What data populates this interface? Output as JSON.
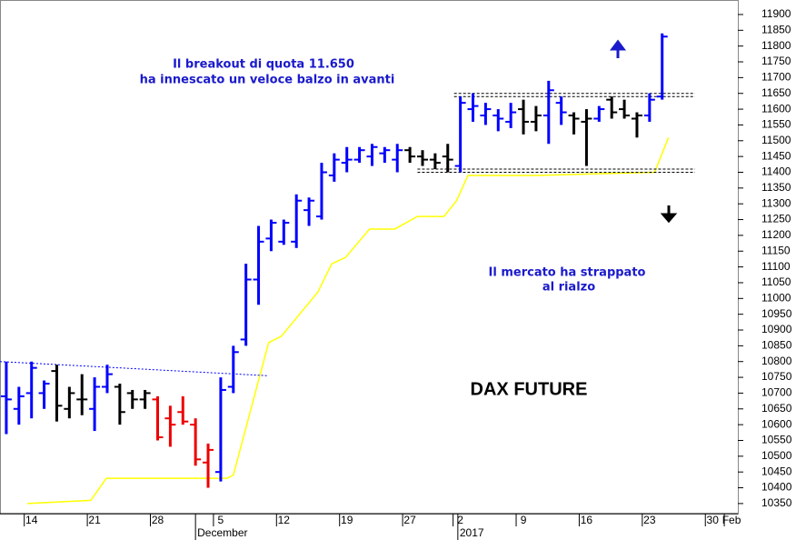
{
  "chart_data": {
    "type": "ohlc",
    "title": "DAX FUTURE",
    "annotations": [
      "Il breakout di quota 11.650",
      "ha innescato un veloce balzo in avanti",
      "Il mercato ha strappato",
      "al rialzo"
    ],
    "ylim": [
      10318,
      11946
    ],
    "yticks": [
      10350,
      10400,
      10450,
      10500,
      10550,
      10600,
      10650,
      10700,
      10750,
      10800,
      10850,
      10900,
      10950,
      11000,
      11050,
      11100,
      11150,
      11200,
      11250,
      11300,
      11350,
      11400,
      11450,
      11500,
      11550,
      11600,
      11650,
      11700,
      11750,
      11800,
      11850,
      11900
    ],
    "xlim": [
      -2.5,
      56
    ],
    "xticks": [
      {
        "value": 0,
        "label": "14"
      },
      {
        "value": 5,
        "label": "21"
      },
      {
        "value": 10,
        "label": "28"
      },
      {
        "value": 15,
        "label": "5"
      },
      {
        "value": 20,
        "label": "12"
      },
      {
        "value": 25,
        "label": "19"
      },
      {
        "value": 30,
        "label": "27"
      },
      {
        "value": 34,
        "label": "2"
      },
      {
        "value": 39,
        "label": "9"
      },
      {
        "value": 44,
        "label": "16"
      },
      {
        "value": 49,
        "label": "23"
      },
      {
        "value": 54,
        "label": "30"
      },
      {
        "value": 55.5,
        "label": "Feb"
      }
    ],
    "month_labels": [
      {
        "value": 13,
        "label": "December"
      },
      {
        "value": 33.8,
        "label": "2017"
      }
    ],
    "bars": [
      {
        "x": -2,
        "open": 10690,
        "high": 10800,
        "low": 10570,
        "close": 10680,
        "color": "#0000ff"
      },
      {
        "x": -1,
        "open": 10650,
        "high": 10720,
        "low": 10600,
        "close": 10690,
        "color": "#0000ff"
      },
      {
        "x": 0,
        "open": 10700,
        "high": 10800,
        "low": 10620,
        "close": 10780,
        "color": "#0000ff"
      },
      {
        "x": 1,
        "open": 10700,
        "high": 10740,
        "low": 10650,
        "close": 10730,
        "color": "#0000ff"
      },
      {
        "x": 2,
        "open": 10770,
        "high": 10790,
        "low": 10610,
        "close": 10660,
        "color": "#000000"
      },
      {
        "x": 3,
        "open": 10650,
        "high": 10720,
        "low": 10620,
        "close": 10700,
        "color": "#000000"
      },
      {
        "x": 4,
        "open": 10680,
        "high": 10760,
        "low": 10630,
        "close": 10680,
        "color": "#000000"
      },
      {
        "x": 5,
        "open": 10650,
        "high": 10750,
        "low": 10580,
        "close": 10720,
        "color": "#0000ff"
      },
      {
        "x": 6,
        "open": 10720,
        "high": 10790,
        "low": 10700,
        "close": 10760,
        "color": "#0000ff"
      },
      {
        "x": 7,
        "open": 10720,
        "high": 10730,
        "low": 10600,
        "close": 10640,
        "color": "#000000"
      },
      {
        "x": 8,
        "open": 10700,
        "high": 10710,
        "low": 10650,
        "close": 10680,
        "color": "#000000"
      },
      {
        "x": 9,
        "open": 10680,
        "high": 10710,
        "low": 10650,
        "close": 10700,
        "color": "#000000"
      },
      {
        "x": 10,
        "open": 10680,
        "high": 10690,
        "low": 10550,
        "close": 10560,
        "color": "#ee0000"
      },
      {
        "x": 11,
        "open": 10620,
        "high": 10660,
        "low": 10530,
        "close": 10600,
        "color": "#ee0000"
      },
      {
        "x": 12,
        "open": 10640,
        "high": 10690,
        "low": 10600,
        "close": 10610,
        "color": "#ee0000"
      },
      {
        "x": 13,
        "open": 10600,
        "high": 10620,
        "low": 10470,
        "close": 10490,
        "color": "#ee0000"
      },
      {
        "x": 14,
        "open": 10480,
        "high": 10540,
        "low": 10400,
        "close": 10520,
        "color": "#ee0000"
      },
      {
        "x": 15,
        "open": 10450,
        "high": 10750,
        "low": 10420,
        "close": 10710,
        "color": "#0000ff"
      },
      {
        "x": 16,
        "open": 10720,
        "high": 10850,
        "low": 10700,
        "close": 10830,
        "color": "#0000ff"
      },
      {
        "x": 17,
        "open": 10870,
        "high": 11110,
        "low": 10850,
        "close": 11060,
        "color": "#0000ff"
      },
      {
        "x": 18,
        "open": 11060,
        "high": 11230,
        "low": 10980,
        "close": 11180,
        "color": "#0000ff"
      },
      {
        "x": 19,
        "open": 11190,
        "high": 11250,
        "low": 11150,
        "close": 11240,
        "color": "#0000ff"
      },
      {
        "x": 20,
        "open": 11180,
        "high": 11250,
        "low": 11170,
        "close": 11240,
        "color": "#0000ff"
      },
      {
        "x": 21,
        "open": 11180,
        "high": 11330,
        "low": 11160,
        "close": 11310,
        "color": "#0000ff"
      },
      {
        "x": 22,
        "open": 11280,
        "high": 11320,
        "low": 11230,
        "close": 11310,
        "color": "#0000ff"
      },
      {
        "x": 23,
        "open": 11260,
        "high": 11430,
        "low": 11250,
        "close": 11400,
        "color": "#0000ff"
      },
      {
        "x": 24,
        "open": 11390,
        "high": 11460,
        "low": 11370,
        "close": 11440,
        "color": "#0000ff"
      },
      {
        "x": 25,
        "open": 11430,
        "high": 11480,
        "low": 11400,
        "close": 11440,
        "color": "#0000ff"
      },
      {
        "x": 26,
        "open": 11440,
        "high": 11480,
        "low": 11430,
        "close": 11470,
        "color": "#0000ff"
      },
      {
        "x": 27,
        "open": 11450,
        "high": 11490,
        "low": 11420,
        "close": 11480,
        "color": "#0000ff"
      },
      {
        "x": 28,
        "open": 11460,
        "high": 11480,
        "low": 11430,
        "close": 11470,
        "color": "#0000ff"
      },
      {
        "x": 29,
        "open": 11440,
        "high": 11490,
        "low": 11400,
        "close": 11470,
        "color": "#0000ff"
      },
      {
        "x": 30,
        "open": 11470,
        "high": 11480,
        "low": 11430,
        "close": 11450,
        "color": "#000000"
      },
      {
        "x": 31,
        "open": 11450,
        "high": 11470,
        "low": 11420,
        "close": 11440,
        "color": "#000000"
      },
      {
        "x": 32,
        "open": 11440,
        "high": 11460,
        "low": 11410,
        "close": 11430,
        "color": "#000000"
      },
      {
        "x": 33,
        "open": 11450,
        "high": 11490,
        "low": 11400,
        "close": 11440,
        "color": "#000000"
      },
      {
        "x": 34,
        "open": 11420,
        "high": 11640,
        "low": 11400,
        "close": 11620,
        "color": "#0000ff"
      },
      {
        "x": 35,
        "open": 11600,
        "high": 11650,
        "low": 11560,
        "close": 11610,
        "color": "#0000ff"
      },
      {
        "x": 36,
        "open": 11580,
        "high": 11620,
        "low": 11550,
        "close": 11600,
        "color": "#0000ff"
      },
      {
        "x": 37,
        "open": 11580,
        "high": 11600,
        "low": 11530,
        "close": 11570,
        "color": "#0000ff"
      },
      {
        "x": 38,
        "open": 11560,
        "high": 11620,
        "low": 11540,
        "close": 11590,
        "color": "#0000ff"
      },
      {
        "x": 39,
        "open": 11600,
        "high": 11630,
        "low": 11520,
        "close": 11560,
        "color": "#000000"
      },
      {
        "x": 40,
        "open": 11560,
        "high": 11610,
        "low": 11530,
        "close": 11580,
        "color": "#000000"
      },
      {
        "x": 41,
        "open": 11580,
        "high": 11690,
        "low": 11490,
        "close": 11660,
        "color": "#0000ff"
      },
      {
        "x": 42,
        "open": 11620,
        "high": 11640,
        "low": 11550,
        "close": 11590,
        "color": "#0000ff"
      },
      {
        "x": 43,
        "open": 11580,
        "high": 11590,
        "low": 11520,
        "close": 11570,
        "color": "#000000"
      },
      {
        "x": 44,
        "open": 11560,
        "high": 11600,
        "low": 11420,
        "close": 11570,
        "color": "#000000"
      },
      {
        "x": 45,
        "open": 11570,
        "high": 11610,
        "low": 11560,
        "close": 11600,
        "color": "#0000ff"
      },
      {
        "x": 46,
        "open": 11630,
        "high": 11640,
        "low": 11570,
        "close": 11590,
        "color": "#000000"
      },
      {
        "x": 47,
        "open": 11600,
        "high": 11630,
        "low": 11570,
        "close": 11580,
        "color": "#000000"
      },
      {
        "x": 48,
        "open": 11570,
        "high": 11590,
        "low": 11510,
        "close": 11580,
        "color": "#000000"
      },
      {
        "x": 49,
        "open": 11580,
        "high": 11650,
        "low": 11560,
        "close": 11630,
        "color": "#0000ff"
      },
      {
        "x": 50,
        "open": 11640,
        "high": 11840,
        "low": 11630,
        "close": 11830,
        "color": "#0000ff"
      }
    ],
    "lines": [
      {
        "color": "#ffff00",
        "style": "solid",
        "x": [
          -0.34,
          4.7,
          5.93,
          15.5,
          16.0,
          18.8,
          19.8,
          22.7,
          23.8,
          24.9,
          26.8,
          28.8,
          30.6,
          32.7,
          33.7,
          34.6,
          40.0,
          49.4,
          50.5
        ],
        "values": [
          10350,
          10360,
          10430,
          10430,
          10440,
          10860,
          10880,
          11020,
          11110,
          11130,
          11220,
          11220,
          11260,
          11260,
          11310,
          11390,
          11390,
          11400,
          11510
        ]
      },
      {
        "color": "#0000ff",
        "style": "dotted",
        "x": [
          -2.5,
          18.8
        ],
        "values": [
          10800,
          10755
        ]
      },
      {
        "color": "#000000",
        "style": "dashed",
        "x": [
          33.5,
          52.6
        ],
        "values": [
          11650,
          11650
        ]
      },
      {
        "color": "#000000",
        "style": "dashed",
        "x": [
          33.5,
          52.6
        ],
        "values": [
          11640,
          11640
        ]
      },
      {
        "color": "#000000",
        "style": "dashed",
        "x": [
          30.6,
          52.6
        ],
        "values": [
          11410,
          11410
        ]
      },
      {
        "color": "#000000",
        "style": "dashed",
        "x": [
          30.6,
          52.6
        ],
        "values": [
          11400,
          11400
        ]
      }
    ]
  }
}
